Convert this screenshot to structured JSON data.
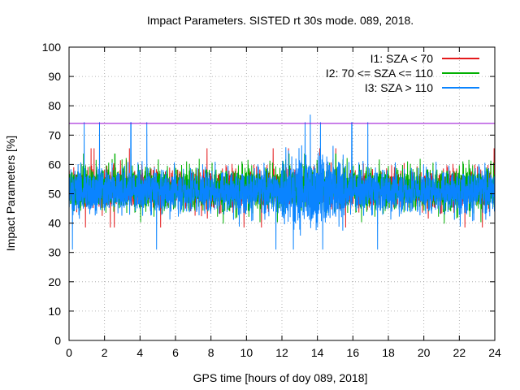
{
  "chart_data": {
    "type": "line",
    "title": "Impact Parameters. SISTED rt 30s mode. 089, 2018.",
    "xlabel": "GPS time [hours of doy 089, 2018]",
    "ylabel": "Impact Parameters [%]",
    "xlim": [
      0,
      24
    ],
    "ylim": [
      0,
      100
    ],
    "x_ticks": [
      0,
      2,
      4,
      6,
      8,
      10,
      12,
      14,
      16,
      18,
      20,
      22,
      24
    ],
    "y_ticks": [
      0,
      10,
      20,
      30,
      40,
      50,
      60,
      70,
      80,
      90,
      100
    ],
    "grid": true,
    "legend_position": "top-right",
    "reference_line": {
      "value": 74,
      "color": "#9400d3"
    },
    "series": [
      {
        "name": "I1: SZA < 70",
        "color": "#e41a1c",
        "mean": 52,
        "spread_typical": 6,
        "min": 35,
        "max": 67
      },
      {
        "name": "I2: 70 <= SZA <= 110",
        "color": "#00b000",
        "mean": 52,
        "spread_typical": 7,
        "min": 34,
        "max": 65
      },
      {
        "name": "I3: SZA > 110",
        "color": "#0a84ff",
        "mean": 51,
        "spread_typical": 7,
        "min": 31,
        "max": 77
      }
    ]
  }
}
